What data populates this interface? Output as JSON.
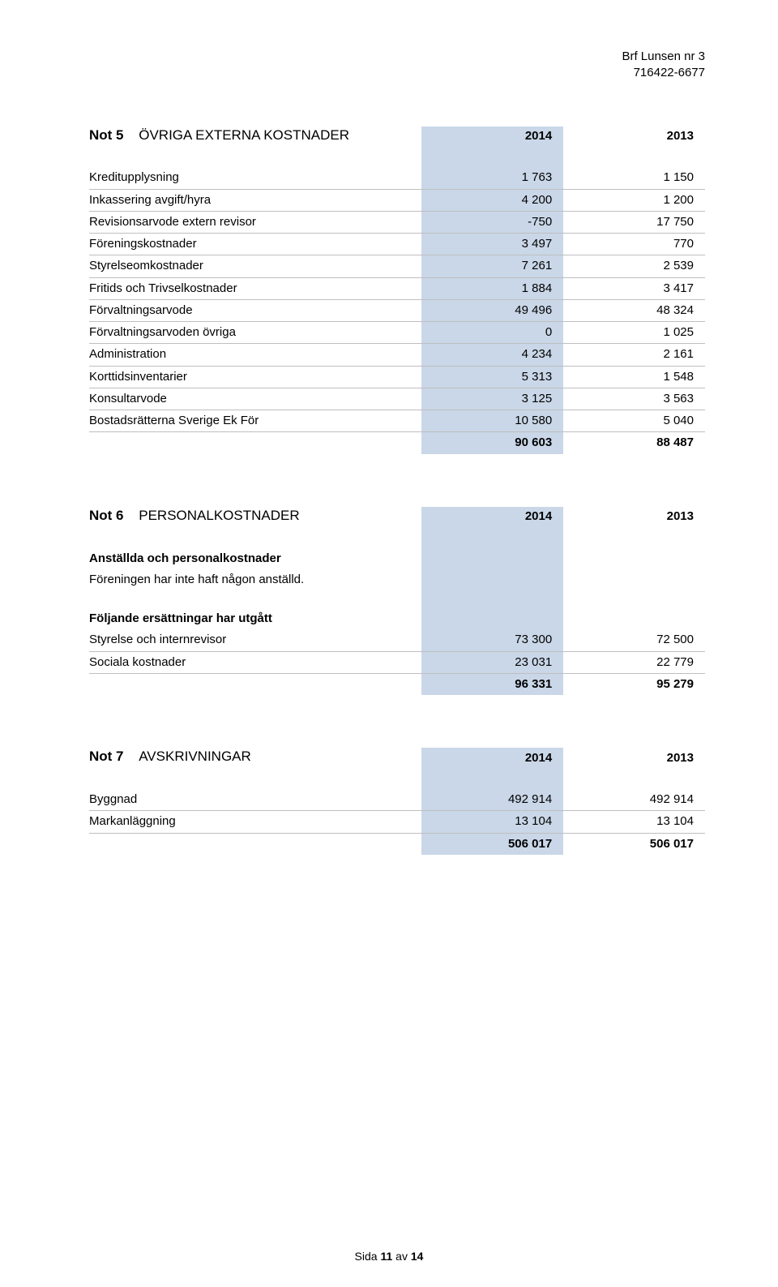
{
  "header": {
    "org_name": "Brf Lunsen nr 3",
    "org_number": "716422-6677"
  },
  "highlight_color": "#c9d7e8",
  "rule_color": "#bfbfbf",
  "text_color": "#000000",
  "notes": [
    {
      "id": "Not 5",
      "title": "ÖVRIGA EXTERNA KOSTNADER",
      "year1": "2014",
      "year2": "2013",
      "rows": [
        {
          "label": "Kreditupplysning",
          "y1": "1 763",
          "y2": "1 150"
        },
        {
          "label": "Inkassering avgift/hyra",
          "y1": "4 200",
          "y2": "1 200"
        },
        {
          "label": "Revisionsarvode extern revisor",
          "y1": "-750",
          "y2": "17 750"
        },
        {
          "label": "Föreningskostnader",
          "y1": "3 497",
          "y2": "770"
        },
        {
          "label": "Styrelseomkostnader",
          "y1": "7 261",
          "y2": "2 539"
        },
        {
          "label": "Fritids och Trivselkostnader",
          "y1": "1 884",
          "y2": "3 417"
        },
        {
          "label": "Förvaltningsarvode",
          "y1": "49 496",
          "y2": "48 324"
        },
        {
          "label": "Förvaltningsarvoden övriga",
          "y1": "0",
          "y2": "1 025"
        },
        {
          "label": "Administration",
          "y1": "4 234",
          "y2": "2 161"
        },
        {
          "label": "Korttidsinventarier",
          "y1": "5 313",
          "y2": "1 548"
        },
        {
          "label": "Konsultarvode",
          "y1": "3 125",
          "y2": "3 563"
        },
        {
          "label": "Bostadsrätterna Sverige Ek För",
          "y1": "10 580",
          "y2": "5 040"
        }
      ],
      "total": {
        "y1": "90 603",
        "y2": "88 487"
      }
    },
    {
      "id": "Not 6",
      "title": "PERSONALKOSTNADER",
      "year1": "2014",
      "year2": "2013",
      "sections": [
        {
          "heading": "Anställda och personalkostnader",
          "text": "Föreningen har inte haft någon anställd."
        },
        {
          "heading": "Följande ersättningar har utgått"
        }
      ],
      "rows": [
        {
          "label": "Styrelse och internrevisor",
          "y1": "73 300",
          "y2": "72 500"
        },
        {
          "label": "Sociala kostnader",
          "y1": "23 031",
          "y2": "22 779"
        }
      ],
      "total": {
        "y1": "96 331",
        "y2": "95 279"
      }
    },
    {
      "id": "Not 7",
      "title": "AVSKRIVNINGAR",
      "year1": "2014",
      "year2": "2013",
      "rows": [
        {
          "label": "Byggnad",
          "y1": "492 914",
          "y2": "492 914"
        },
        {
          "label": "Markanläggning",
          "y1": "13 104",
          "y2": "13 104"
        }
      ],
      "total": {
        "y1": "506 017",
        "y2": "506 017"
      }
    }
  ],
  "footer": {
    "prefix": "Sida ",
    "page": "11",
    "mid": " av ",
    "total": "14"
  }
}
